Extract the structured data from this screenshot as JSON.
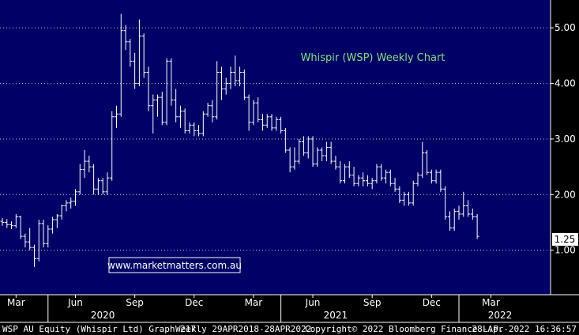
{
  "chart_data": {
    "type": "ohlc",
    "title": "Whispir (WSP) Weekly Chart",
    "watermark": "www.marketmatters.com.au",
    "last_price_label": "1.25",
    "last_price": 1.25,
    "ylim": [
      0.2,
      5.5
    ],
    "y_ticks": [
      {
        "value": 1.0,
        "label": "1.00"
      },
      {
        "value": 2.0,
        "label": "2.00"
      },
      {
        "value": 3.0,
        "label": "3.00"
      },
      {
        "value": 4.0,
        "label": "4.00"
      },
      {
        "value": 5.0,
        "label": "5.00"
      }
    ],
    "x_months": [
      {
        "index": 3,
        "label": "Mar"
      },
      {
        "index": 16,
        "label": "Jun"
      },
      {
        "index": 29,
        "label": "Sep"
      },
      {
        "index": 42,
        "label": "Dec"
      },
      {
        "index": 55,
        "label": "Mar"
      },
      {
        "index": 68,
        "label": "Jun"
      },
      {
        "index": 81,
        "label": "Sep"
      },
      {
        "index": 94,
        "label": "Dec"
      },
      {
        "index": 107,
        "label": "Mar"
      }
    ],
    "x_years": [
      {
        "index": 22,
        "label": "2020"
      },
      {
        "index": 73,
        "label": "2021"
      },
      {
        "index": 109,
        "label": "2022"
      }
    ],
    "year_boundaries": [
      10,
      61,
      100
    ],
    "grid": true,
    "colors": {
      "background": "#000066",
      "bars": "#ffffff",
      "grid": "#ffffff",
      "title": "#7fe07f",
      "watermark_border": "#ffffff"
    },
    "series": [
      {
        "name": "WSP AU Equity",
        "x_start": "2018-04-29",
        "bar_interval": "weekly",
        "ohlc": [
          [
            1.52,
            1.58,
            1.44,
            1.5
          ],
          [
            1.5,
            1.56,
            1.4,
            1.46
          ],
          [
            1.46,
            1.52,
            1.38,
            1.44
          ],
          [
            1.44,
            1.65,
            1.4,
            1.6
          ],
          [
            1.6,
            1.62,
            1.2,
            1.25
          ],
          [
            1.25,
            1.3,
            1.05,
            1.15
          ],
          [
            1.15,
            1.4,
            1.0,
            1.05
          ],
          [
            1.05,
            1.1,
            0.7,
            0.85
          ],
          [
            0.85,
            1.55,
            0.8,
            1.48
          ],
          [
            1.48,
            1.55,
            1.05,
            1.12
          ],
          [
            1.12,
            1.45,
            1.05,
            1.38
          ],
          [
            1.38,
            1.6,
            1.3,
            1.55
          ],
          [
            1.55,
            1.65,
            1.4,
            1.62
          ],
          [
            1.62,
            1.82,
            1.55,
            1.8
          ],
          [
            1.8,
            1.9,
            1.7,
            1.85
          ],
          [
            1.85,
            1.95,
            1.75,
            1.88
          ],
          [
            1.88,
            2.1,
            1.8,
            2.05
          ],
          [
            2.05,
            2.55,
            2.0,
            2.45
          ],
          [
            2.45,
            2.8,
            2.3,
            2.6
          ],
          [
            2.6,
            2.7,
            2.4,
            2.5
          ],
          [
            2.5,
            2.55,
            2.0,
            2.1
          ],
          [
            2.1,
            2.3,
            2.0,
            2.25
          ],
          [
            2.25,
            2.3,
            2.0,
            2.05
          ],
          [
            2.05,
            2.4,
            2.0,
            2.3
          ],
          [
            2.3,
            3.5,
            2.25,
            3.4
          ],
          [
            3.4,
            3.6,
            3.2,
            3.45
          ],
          [
            3.45,
            5.25,
            3.4,
            4.95
          ],
          [
            4.95,
            5.05,
            4.6,
            4.75
          ],
          [
            4.75,
            4.8,
            4.3,
            4.4
          ],
          [
            4.4,
            4.55,
            3.9,
            4.0
          ],
          [
            4.0,
            5.15,
            3.95,
            4.85
          ],
          [
            4.85,
            4.9,
            4.1,
            4.2
          ],
          [
            4.2,
            4.3,
            3.5,
            3.6
          ],
          [
            3.6,
            3.8,
            3.1,
            3.7
          ],
          [
            3.7,
            3.8,
            3.4,
            3.75
          ],
          [
            3.75,
            3.85,
            3.25,
            3.3
          ],
          [
            3.3,
            4.45,
            3.25,
            4.4
          ],
          [
            4.4,
            4.45,
            3.6,
            3.7
          ],
          [
            3.7,
            3.9,
            3.3,
            3.4
          ],
          [
            3.4,
            3.6,
            3.2,
            3.5
          ],
          [
            3.5,
            3.55,
            3.1,
            3.15
          ],
          [
            3.15,
            3.3,
            3.1,
            3.25
          ],
          [
            3.25,
            3.3,
            3.05,
            3.15
          ],
          [
            3.15,
            3.25,
            3.05,
            3.1
          ],
          [
            3.1,
            3.5,
            3.05,
            3.45
          ],
          [
            3.45,
            3.65,
            3.4,
            3.6
          ],
          [
            3.6,
            3.7,
            3.3,
            3.4
          ],
          [
            3.4,
            4.4,
            3.35,
            4.2
          ],
          [
            4.2,
            4.3,
            3.7,
            3.9
          ],
          [
            3.9,
            4.1,
            3.8,
            4.0
          ],
          [
            4.0,
            4.3,
            3.9,
            4.2
          ],
          [
            4.2,
            4.5,
            3.95,
            4.05
          ],
          [
            4.05,
            4.3,
            3.95,
            4.2
          ],
          [
            4.2,
            4.25,
            3.7,
            3.75
          ],
          [
            3.75,
            3.8,
            3.15,
            3.3
          ],
          [
            3.3,
            3.7,
            3.25,
            3.65
          ],
          [
            3.65,
            3.75,
            3.3,
            3.35
          ],
          [
            3.35,
            3.45,
            3.15,
            3.25
          ],
          [
            3.25,
            3.45,
            3.2,
            3.4
          ],
          [
            3.4,
            3.45,
            3.15,
            3.2
          ],
          [
            3.2,
            3.4,
            3.15,
            3.35
          ],
          [
            3.35,
            3.4,
            3.1,
            3.15
          ],
          [
            3.15,
            3.2,
            2.75,
            2.8
          ],
          [
            2.8,
            2.85,
            2.4,
            2.5
          ],
          [
            2.5,
            2.85,
            2.45,
            2.6
          ],
          [
            2.6,
            3.0,
            2.55,
            2.95
          ],
          [
            2.95,
            3.05,
            2.7,
            2.75
          ],
          [
            2.75,
            3.05,
            2.65,
            3.0
          ],
          [
            3.0,
            3.05,
            2.5,
            2.55
          ],
          [
            2.55,
            2.85,
            2.5,
            2.8
          ],
          [
            2.8,
            2.85,
            2.6,
            2.7
          ],
          [
            2.7,
            2.95,
            2.6,
            2.85
          ],
          [
            2.85,
            2.95,
            2.55,
            2.6
          ],
          [
            2.6,
            2.7,
            2.45,
            2.5
          ],
          [
            2.5,
            2.6,
            2.2,
            2.25
          ],
          [
            2.25,
            2.55,
            2.2,
            2.5
          ],
          [
            2.5,
            2.6,
            2.3,
            2.35
          ],
          [
            2.35,
            2.5,
            2.15,
            2.2
          ],
          [
            2.2,
            2.35,
            2.15,
            2.3
          ],
          [
            2.3,
            2.4,
            2.15,
            2.25
          ],
          [
            2.25,
            2.35,
            2.15,
            2.2
          ],
          [
            2.2,
            2.3,
            2.1,
            2.25
          ],
          [
            2.25,
            2.55,
            2.2,
            2.5
          ],
          [
            2.5,
            2.55,
            2.25,
            2.3
          ],
          [
            2.3,
            2.45,
            2.2,
            2.4
          ],
          [
            2.4,
            2.45,
            2.15,
            2.2
          ],
          [
            2.2,
            2.3,
            2.05,
            2.1
          ],
          [
            2.1,
            2.15,
            1.85,
            1.9
          ],
          [
            1.9,
            2.05,
            1.8,
            2.0
          ],
          [
            2.0,
            2.05,
            1.8,
            1.85
          ],
          [
            1.85,
            2.25,
            1.8,
            2.2
          ],
          [
            2.2,
            2.4,
            2.15,
            2.35
          ],
          [
            2.35,
            2.95,
            2.3,
            2.75
          ],
          [
            2.75,
            2.8,
            2.35,
            2.4
          ],
          [
            2.4,
            2.45,
            2.2,
            2.25
          ],
          [
            2.25,
            2.45,
            2.2,
            2.4
          ],
          [
            2.4,
            2.45,
            2.05,
            2.1
          ],
          [
            2.1,
            2.15,
            1.55,
            1.6
          ],
          [
            1.6,
            1.7,
            1.35,
            1.4
          ],
          [
            1.4,
            1.75,
            1.35,
            1.7
          ],
          [
            1.7,
            1.8,
            1.55,
            1.65
          ],
          [
            1.65,
            2.05,
            1.6,
            1.8
          ],
          [
            1.8,
            1.9,
            1.6,
            1.65
          ],
          [
            1.65,
            1.75,
            1.55,
            1.6
          ],
          [
            1.6,
            1.65,
            1.2,
            1.25
          ]
        ]
      }
    ]
  },
  "footer": {
    "ticker": "WSP AU Equity (Whispir Ltd) Graph 217",
    "range": "Weekly 29APR2018-28APR2022",
    "copyright": "Copyright© 2022 Bloomberg Finance L.P.",
    "timestamp": "28-Apr-2022 16:36:57"
  }
}
